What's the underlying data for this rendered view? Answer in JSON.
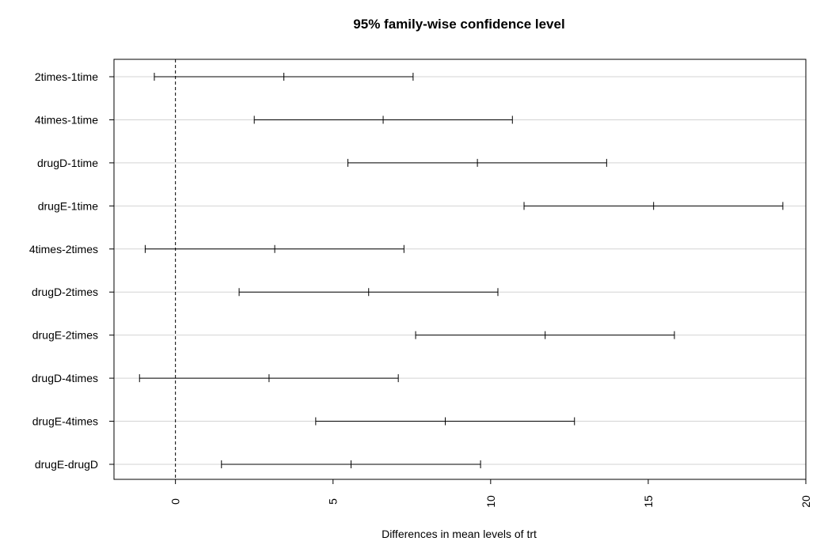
{
  "chart_data": {
    "type": "errorbar",
    "title": "95% family-wise confidence level",
    "xlabel": "Differences in mean levels of trt",
    "ylabel": "",
    "xlim": [
      -1.95,
      20.0
    ],
    "x_ticks": [
      0,
      5,
      10,
      15,
      20
    ],
    "x_tick_labels": [
      "0",
      "5",
      "10",
      "15",
      "20"
    ],
    "reference_line_x": 0,
    "grid": "horizontal",
    "grid_color": "#d3d3d3",
    "line_color": "#000000",
    "comparisons": [
      {
        "label": "2times-1time",
        "lwr": -0.67,
        "diff": 3.44,
        "upr": 7.54
      },
      {
        "label": "4times-1time",
        "lwr": 2.5,
        "diff": 6.59,
        "upr": 10.69
      },
      {
        "label": "drugD-1time",
        "lwr": 5.47,
        "diff": 9.58,
        "upr": 13.68
      },
      {
        "label": "drugE-1time",
        "lwr": 11.06,
        "diff": 15.17,
        "upr": 19.27
      },
      {
        "label": "4times-2times",
        "lwr": -0.96,
        "diff": 3.15,
        "upr": 7.25
      },
      {
        "label": "drugD-2times",
        "lwr": 2.02,
        "diff": 6.13,
        "upr": 10.23
      },
      {
        "label": "drugE-2times",
        "lwr": 7.62,
        "diff": 11.73,
        "upr": 15.83
      },
      {
        "label": "drugD-4times",
        "lwr": -1.14,
        "diff": 2.97,
        "upr": 7.07
      },
      {
        "label": "drugE-4times",
        "lwr": 4.45,
        "diff": 8.56,
        "upr": 12.66
      },
      {
        "label": "drugE-drugD",
        "lwr": 1.46,
        "diff": 5.57,
        "upr": 9.68
      }
    ]
  }
}
